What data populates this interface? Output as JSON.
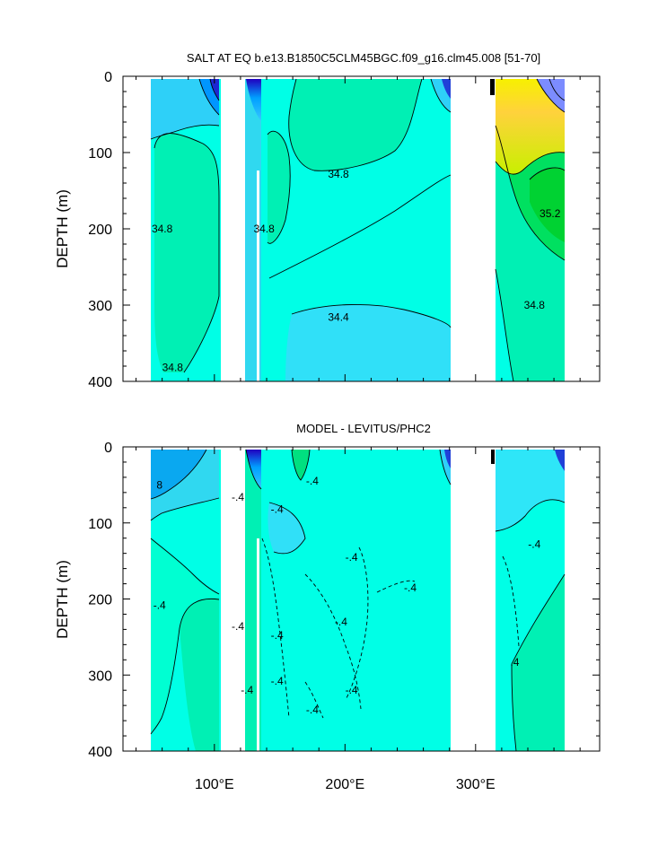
{
  "chart_data": [
    {
      "type": "contour",
      "title": "SALT AT EQ b.e13.B1850C5CLM45BGC.f09_g16.clm45.008 [51-70]",
      "ylabel": "DEPTH (m)",
      "xlabel": "",
      "x_range_deg_e": [
        30,
        395
      ],
      "ylim": [
        0,
        400
      ],
      "y_reversed": true,
      "yticks": [
        "0",
        "100",
        "200",
        "300",
        "400"
      ],
      "xticks": [],
      "land_gaps_deg_e": [
        [
          97,
          116
        ],
        [
          278,
          313
        ]
      ],
      "contour_levels": [
        34.4,
        34.8,
        35.2
      ],
      "contour_labels": [
        {
          "text": "34.8",
          "x": 60,
          "depth": 200
        },
        {
          "text": "34.8",
          "x": 195,
          "depth": 128
        },
        {
          "text": "34.8",
          "x": 138,
          "depth": 200
        },
        {
          "text": "35.2",
          "x": 357,
          "depth": 180
        },
        {
          "text": "34.8",
          "x": 345,
          "depth": 300
        },
        {
          "text": "34.4",
          "x": 195,
          "depth": 316
        },
        {
          "text": "34.8",
          "x": 68,
          "depth": 382
        }
      ]
    },
    {
      "type": "contour",
      "title": "MODEL - LEVITUS/PHC2",
      "ylabel": "DEPTH (m)",
      "xlabel": "",
      "x_range_deg_e": [
        30,
        395
      ],
      "ylim": [
        0,
        400
      ],
      "y_reversed": true,
      "yticks": [
        "0",
        "100",
        "200",
        "300",
        "400"
      ],
      "xticks": [
        "100°E",
        "200°E",
        "300°E"
      ],
      "xtick_values": [
        100,
        200,
        300
      ],
      "land_gaps_deg_e": [
        [
          97,
          116
        ],
        [
          278,
          313
        ]
      ],
      "contour_levels": [
        -0.8,
        -0.4,
        0.4
      ],
      "contour_labels": [
        {
          "text": "8",
          "x": 58,
          "depth": 50
        },
        {
          "text": "-.4",
          "x": 58,
          "depth": 208
        },
        {
          "text": "-.4",
          "x": 118,
          "depth": 66
        },
        {
          "text": "-.4",
          "x": 148,
          "depth": 82
        },
        {
          "text": "-.4",
          "x": 175,
          "depth": 45
        },
        {
          "text": "-.4",
          "x": 205,
          "depth": 145
        },
        {
          "text": "-.4",
          "x": 345,
          "depth": 128
        },
        {
          "text": "-.4",
          "x": 250,
          "depth": 185
        },
        {
          "text": "-.4",
          "x": 118,
          "depth": 236
        },
        {
          "text": "-.4",
          "x": 148,
          "depth": 248
        },
        {
          "text": "-.4",
          "x": 197,
          "depth": 230
        },
        {
          "text": "-.4",
          "x": 148,
          "depth": 308
        },
        {
          "text": "-.4",
          "x": 205,
          "depth": 320
        },
        {
          "text": ".4",
          "x": 330,
          "depth": 283
        },
        {
          "text": "-.4",
          "x": 125,
          "depth": 320
        },
        {
          "text": "-.4",
          "x": 175,
          "depth": 346
        }
      ]
    }
  ]
}
